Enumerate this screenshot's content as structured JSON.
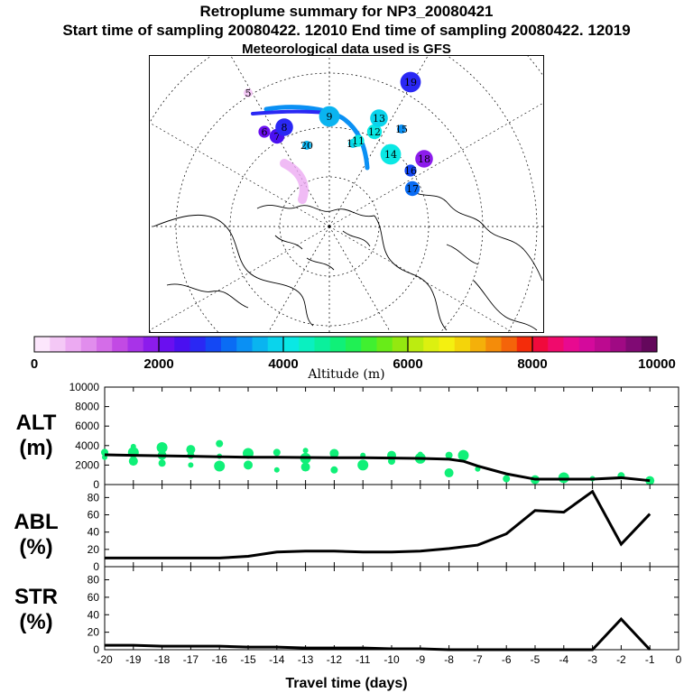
{
  "header": {
    "title": "Retroplume summary for NP3_20080421",
    "sampling_line": "Start time of sampling 20080422. 12010     End time of sampling 20080422. 12019",
    "met_line": "Meteorological data used is GFS"
  },
  "colorbar": {
    "title": "Altitude (m)",
    "tick_labels": [
      "0",
      "2000",
      "4000",
      "6000",
      "8000",
      "10000"
    ],
    "tick_values": [
      0,
      2000,
      4000,
      6000,
      8000,
      10000
    ],
    "colors": [
      "#fce6fc",
      "#f4c8f6",
      "#ecaaf2",
      "#e18ded",
      "#d46de8",
      "#c24ae4",
      "#a833e8",
      "#8c1cec",
      "#6a0ff0",
      "#4a10f0",
      "#2a28f4",
      "#1448f4",
      "#0a6cf4",
      "#0a90f4",
      "#0ab4f0",
      "#0ad4ec",
      "#0ae8e4",
      "#0af0c0",
      "#0af09c",
      "#10f078",
      "#20f054",
      "#40f030",
      "#68ec18",
      "#94e810",
      "#bcec10",
      "#dcf010",
      "#f4f010",
      "#f4d40a",
      "#f4b00a",
      "#f48c0a",
      "#f4640a",
      "#f42c0a",
      "#f00a3c",
      "#f00a6c",
      "#e80a90",
      "#d40a9c",
      "#bc0a90",
      "#a00a84",
      "#800a74",
      "#64085c"
    ]
  },
  "map": {
    "markers": [
      {
        "label": "5",
        "color": "#f4c8f6"
      },
      {
        "label": "6",
        "color": "#6a0ff0"
      },
      {
        "label": "7",
        "color": "#4a10f0"
      },
      {
        "label": "8",
        "color": "#2a28f4"
      },
      {
        "label": "9",
        "color": "#0ab4f0"
      },
      {
        "label": "10",
        "color": "#0ad4ec"
      },
      {
        "label": "11",
        "color": "#0ae8e4"
      },
      {
        "label": "12",
        "color": "#0ae8e4"
      },
      {
        "label": "13",
        "color": "#0ad4ec"
      },
      {
        "label": "14",
        "color": "#0ae8e4"
      },
      {
        "label": "15",
        "color": "#0a90f4"
      },
      {
        "label": "16",
        "color": "#1448f4"
      },
      {
        "label": "17",
        "color": "#0a6cf4"
      },
      {
        "label": "18",
        "color": "#8c1cec"
      },
      {
        "label": "19",
        "color": "#2a28f4"
      },
      {
        "label": "20",
        "color": "#0ab4f0"
      }
    ]
  },
  "chart_data": [
    {
      "type": "scatter",
      "name": "ALT",
      "ylabel_lines": [
        "ALT",
        "(m)"
      ],
      "ylim": [
        0,
        10000
      ],
      "yticks": [
        0,
        2000,
        4000,
        6000,
        8000,
        10000
      ],
      "xlim": [
        -20,
        0
      ],
      "line": {
        "x": [
          -20,
          -19,
          -18,
          -17,
          -16,
          -15,
          -14,
          -13,
          -12,
          -11,
          -10,
          -9,
          -8,
          -7.5,
          -7,
          -6,
          -5,
          -4,
          -3,
          -2,
          -1
        ],
        "y": [
          3050,
          3000,
          2950,
          2900,
          2850,
          2800,
          2800,
          2780,
          2760,
          2750,
          2720,
          2680,
          2600,
          2400,
          1900,
          1100,
          550,
          550,
          550,
          700,
          400
        ]
      },
      "points": {
        "x": [
          -20,
          -20,
          -19,
          -19,
          -19,
          -18,
          -18,
          -18,
          -17,
          -17,
          -17,
          -16,
          -16,
          -16,
          -15,
          -15,
          -14,
          -14,
          -13,
          -13,
          -13,
          -12,
          -12,
          -11,
          -11,
          -10,
          -10,
          -9,
          -9,
          -8,
          -8,
          -7.5,
          -7,
          -6,
          -5,
          -4,
          -3,
          -2,
          -1
        ],
        "y": [
          2800,
          3300,
          2400,
          3300,
          3900,
          2200,
          3000,
          3800,
          2000,
          3000,
          3600,
          1900,
          2900,
          4200,
          2000,
          3200,
          1500,
          3300,
          1800,
          2700,
          3500,
          1500,
          3200,
          2000,
          3000,
          2400,
          3000,
          2700,
          3100,
          3000,
          1200,
          3000,
          1600,
          600,
          500,
          700,
          600,
          900,
          400
        ]
      },
      "color": "#10f078"
    },
    {
      "type": "line",
      "name": "ABL",
      "ylabel_lines": [
        "ABL",
        "(%)"
      ],
      "ylim": [
        0,
        95
      ],
      "yticks": [
        0,
        20,
        40,
        60,
        80
      ],
      "xlim": [
        -20,
        0
      ],
      "x": [
        -20,
        -19,
        -18,
        -17,
        -16,
        -15,
        -14,
        -13,
        -12,
        -11,
        -10,
        -9,
        -8,
        -7,
        -6,
        -5,
        -4,
        -3,
        -2,
        -1
      ],
      "y": [
        10,
        10,
        10,
        10,
        10,
        12,
        17,
        18,
        18,
        17,
        17,
        18,
        21,
        25,
        38,
        65,
        63,
        87,
        26,
        61
      ]
    },
    {
      "type": "line",
      "name": "STR",
      "ylabel_lines": [
        "STR",
        "(%)"
      ],
      "ylim": [
        0,
        95
      ],
      "yticks": [
        0,
        20,
        40,
        60,
        80
      ],
      "xlim": [
        -20,
        0
      ],
      "xlabel": "Travel time (days)",
      "xtick_labels": [
        "-20",
        "-19",
        "-18",
        "-17",
        "-16",
        "-15",
        "-14",
        "-13",
        "-12",
        "-11",
        "-10",
        "-9",
        "-8",
        "-7",
        "-6",
        "-5",
        "-4",
        "-3",
        "-2",
        "-1",
        "0"
      ],
      "x": [
        -20,
        -19,
        -18,
        -17,
        -16,
        -15,
        -14,
        -13,
        -12,
        -11,
        -10,
        -9,
        -8,
        -7,
        -6,
        -5,
        -4,
        -3,
        -2,
        -1
      ],
      "y": [
        5,
        5,
        4,
        4,
        4,
        3,
        3,
        2,
        2,
        2,
        1,
        1,
        0,
        0,
        0,
        0,
        0,
        0,
        35,
        0
      ]
    }
  ]
}
